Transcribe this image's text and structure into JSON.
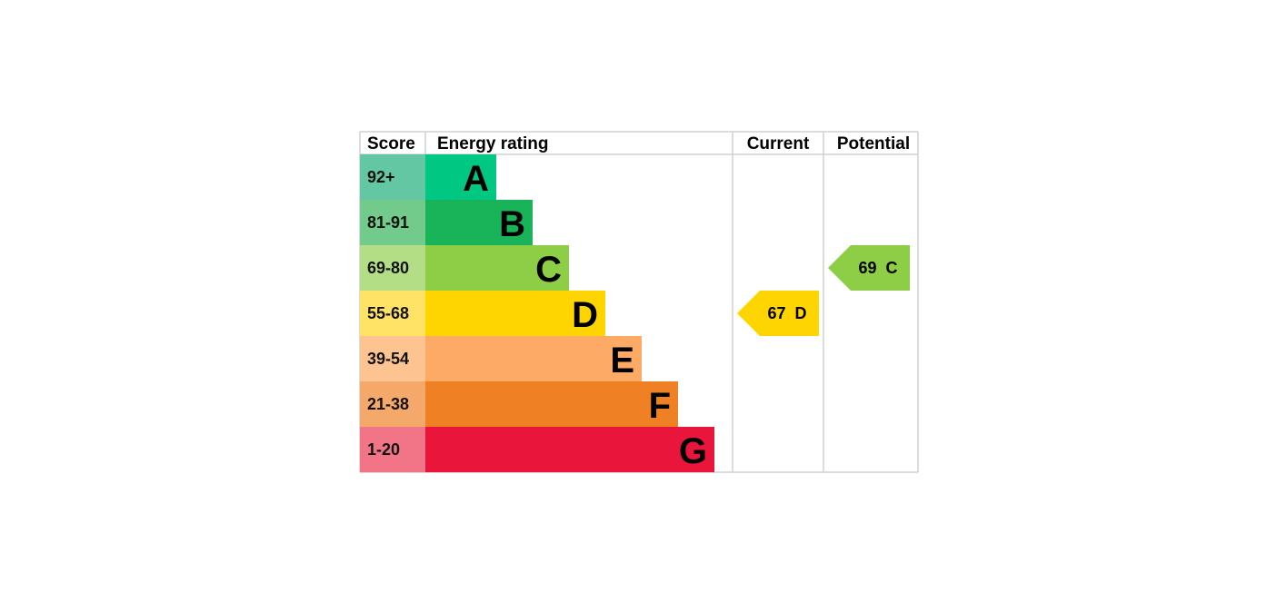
{
  "chart_data": {
    "type": "table",
    "title": "Energy rating",
    "headers": {
      "score": "Score",
      "rating": "Energy rating",
      "current": "Current",
      "potential": "Potential"
    },
    "bands": [
      {
        "letter": "A",
        "range": "92+",
        "color": "#00c781",
        "score_color": "#64c7a4"
      },
      {
        "letter": "B",
        "range": "81-91",
        "color": "#19b459",
        "score_color": "#72ca8b"
      },
      {
        "letter": "C",
        "range": "69-80",
        "color": "#8dce46",
        "score_color": "#b4de86"
      },
      {
        "letter": "D",
        "range": "55-68",
        "color": "#ffd500",
        "score_color": "#ffe366"
      },
      {
        "letter": "E",
        "range": "39-54",
        "color": "#fcaa65",
        "score_color": "#fdc491"
      },
      {
        "letter": "F",
        "range": "21-38",
        "color": "#ef8023",
        "score_color": "#f4a86a"
      },
      {
        "letter": "G",
        "range": "1-20",
        "color": "#e9153b",
        "score_color": "#f27587"
      }
    ],
    "current": {
      "value": 67,
      "letter": "D",
      "label": "67  D"
    },
    "potential": {
      "value": 69,
      "letter": "C",
      "label": "69  C"
    }
  }
}
